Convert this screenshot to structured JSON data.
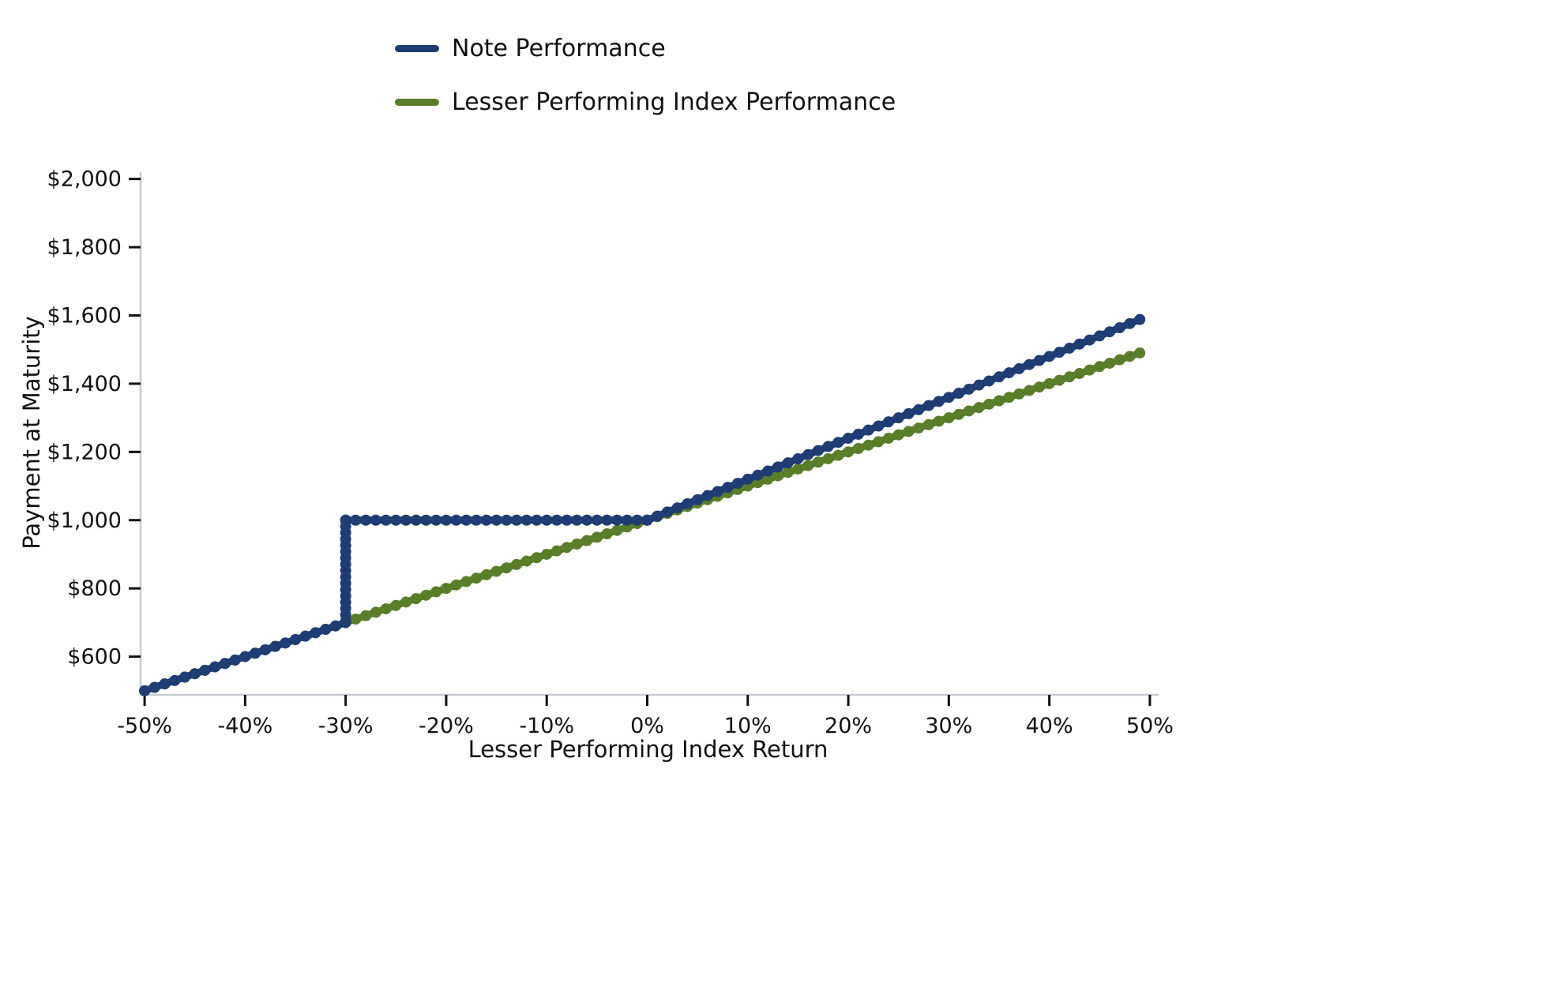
{
  "legend": {
    "items": [
      {
        "label": "Note Performance",
        "color": "#1f3d73"
      },
      {
        "label": "Lesser Performing Index Performance",
        "color": "#5a7d29"
      }
    ]
  },
  "chart_data": {
    "type": "line",
    "xlabel": "Lesser Performing Index Return",
    "ylabel": "Payment at Maturity",
    "xlim": [
      -50.4,
      50.4
    ],
    "ylim": [
      488,
      2020
    ],
    "grid": false,
    "legend_position": "top-left above plot",
    "x_ticks": {
      "values": [
        -50,
        -40,
        -30,
        -20,
        -10,
        0,
        10,
        20,
        30,
        40,
        50
      ],
      "labels": [
        "-50%",
        "-40%",
        "-30%",
        "-20%",
        "-10%",
        "0%",
        "10%",
        "20%",
        "30%",
        "40%",
        "50%"
      ]
    },
    "y_ticks": {
      "values": [
        600,
        800,
        1000,
        1200,
        1400,
        1600,
        1800,
        2000
      ],
      "labels": [
        "$600",
        "$800",
        "$1,000",
        "$1,200",
        "$1,400",
        "$1,600",
        "$1,800",
        "$2,000"
      ]
    },
    "series": [
      {
        "name": "Note Performance",
        "color": "#1f3d73",
        "vertices": [
          [
            -50,
            500
          ],
          [
            -30,
            700
          ],
          [
            -30,
            1000
          ],
          [
            0,
            1000
          ],
          [
            49,
            1588
          ]
        ]
      },
      {
        "name": "Lesser Performing Index Performance",
        "color": "#5a7d29",
        "vertices": [
          [
            -50,
            500
          ],
          [
            49,
            1490
          ]
        ]
      }
    ],
    "marker_step_pct": 1,
    "line_width": 9,
    "marker_radius": 7
  }
}
